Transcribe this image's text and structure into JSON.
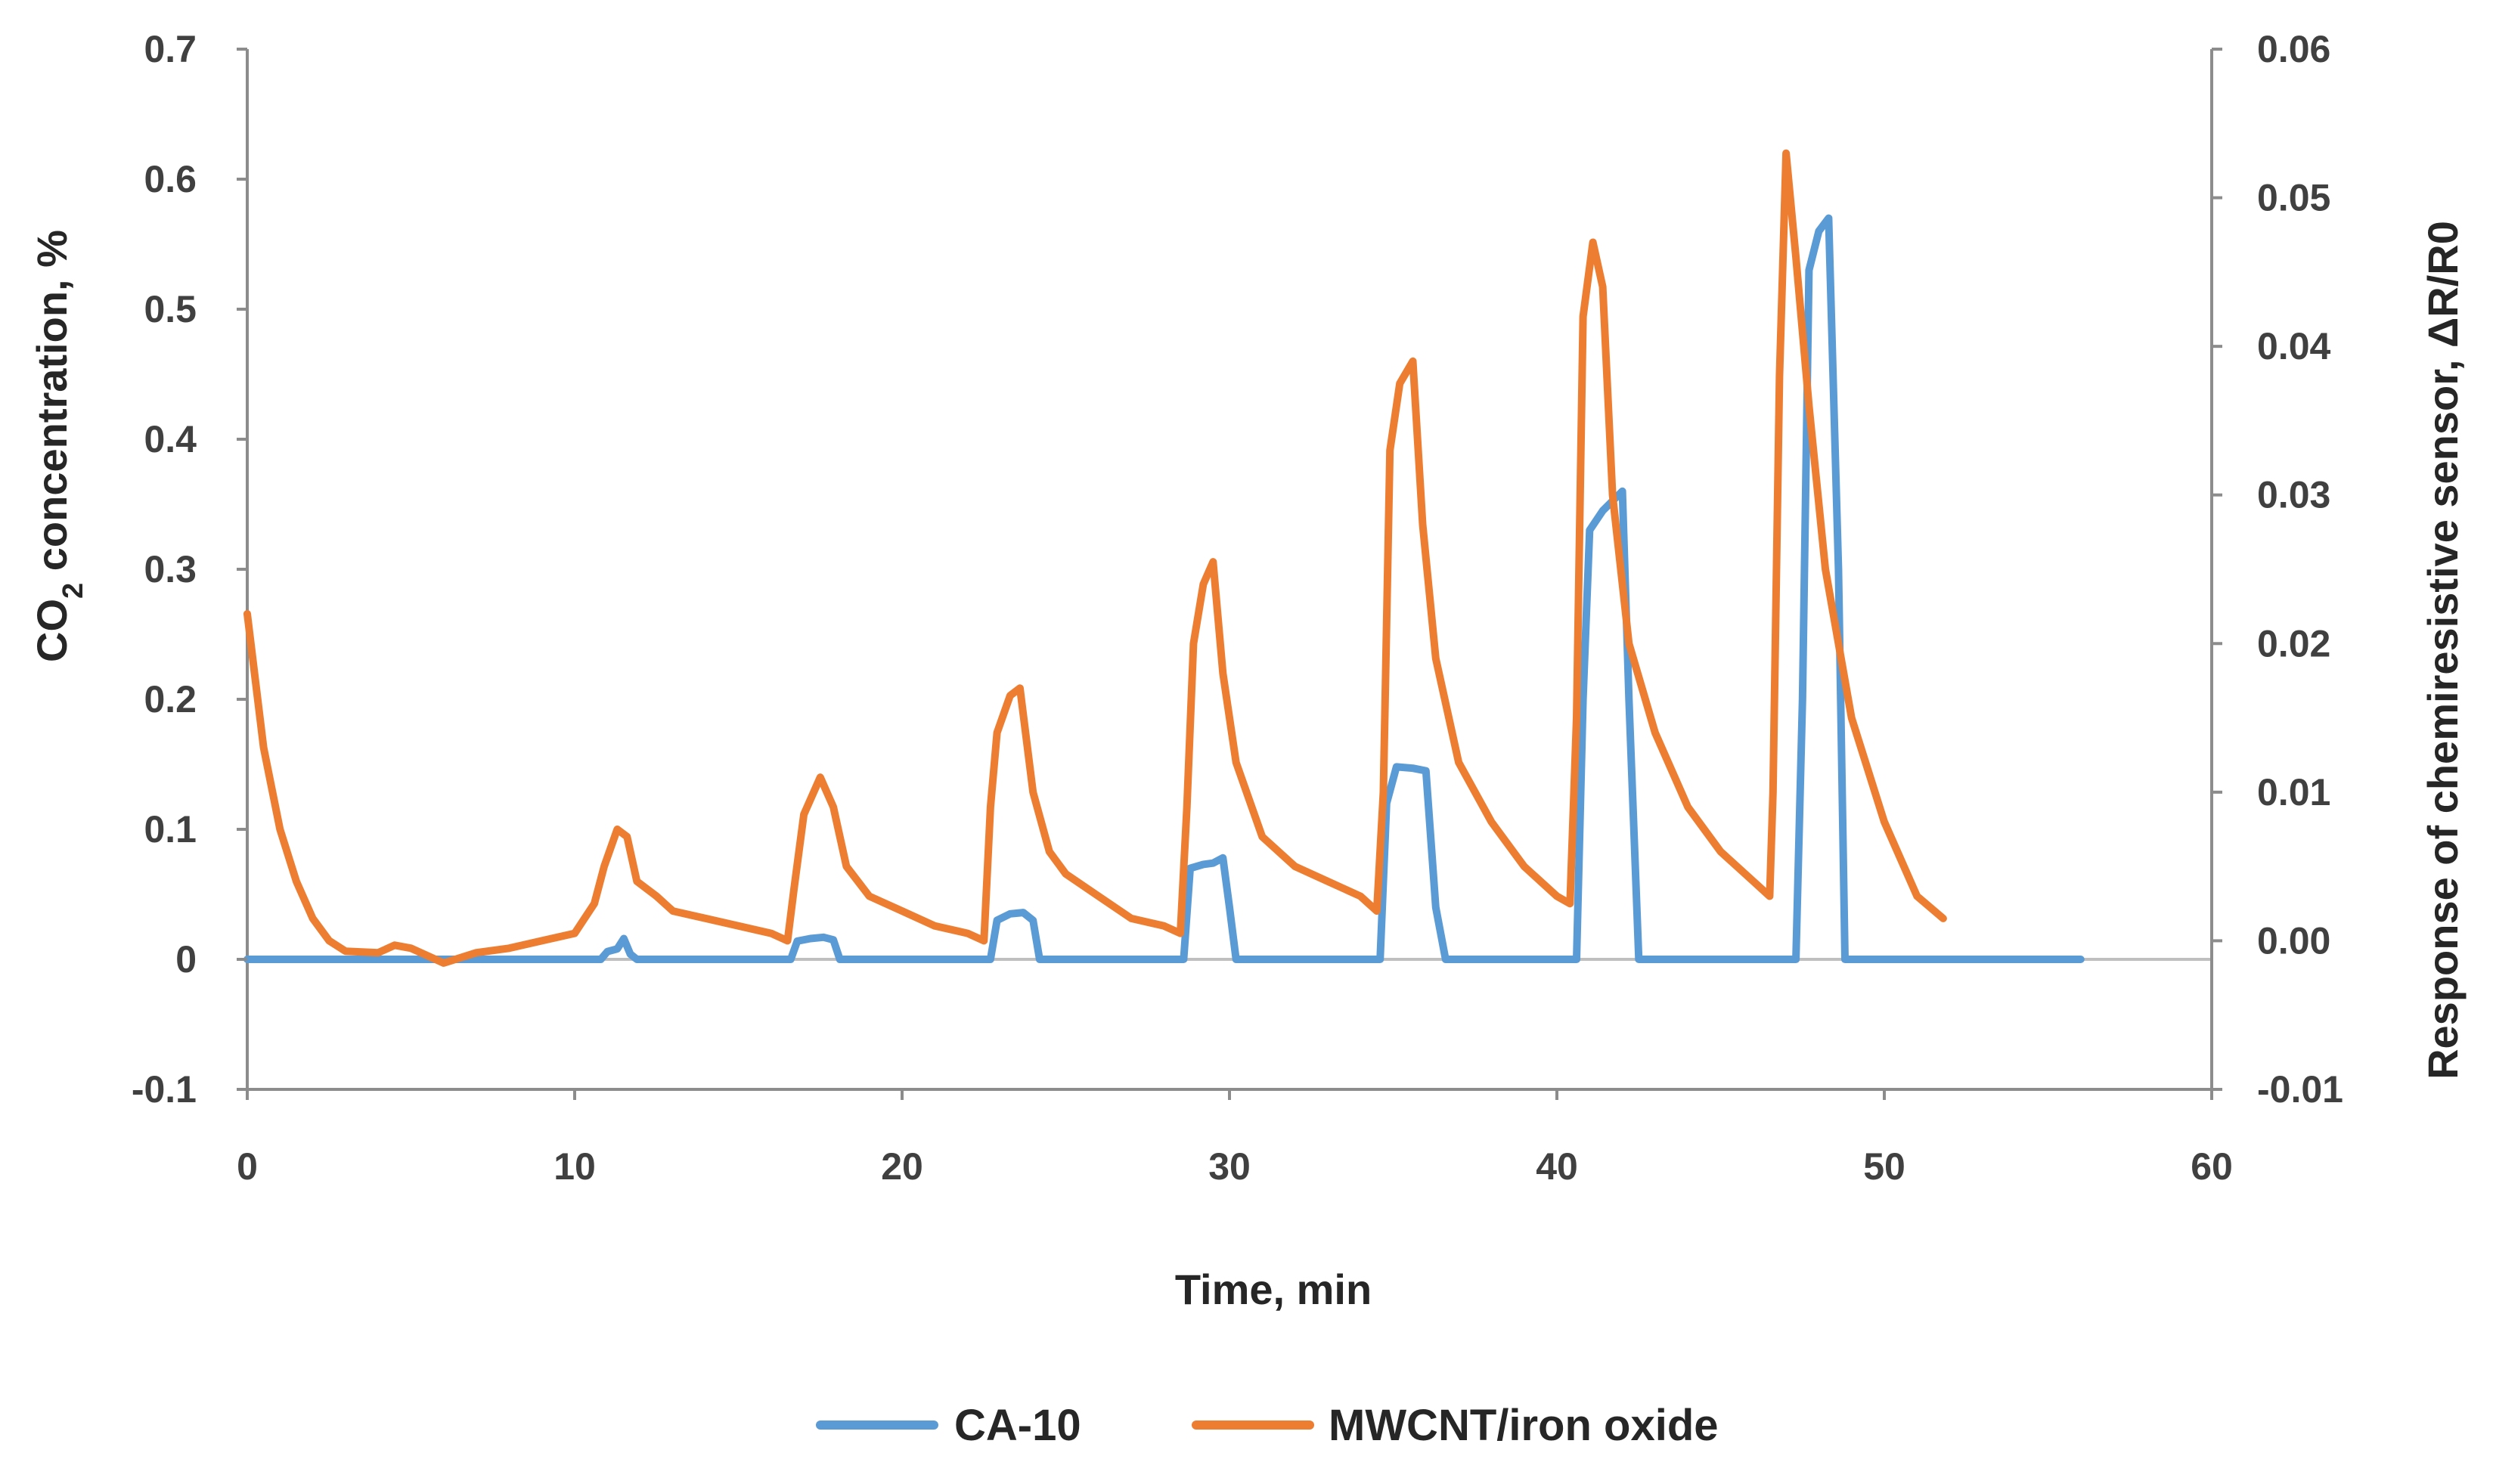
{
  "chart_data": {
    "type": "line",
    "title": "",
    "xlabel": "Time, min",
    "ylabel_left": {
      "text": "CO",
      "sub": "2",
      "rest": " concentration, %"
    },
    "ylabel_right": "Response of chemiresistive sensor, ΔR/R0",
    "xlim": [
      0,
      60
    ],
    "ylim_left": [
      -0.1,
      0.7
    ],
    "ylim_right": [
      -0.01,
      0.06
    ],
    "xticks": [
      "0",
      "10",
      "20",
      "30",
      "40",
      "50",
      "60"
    ],
    "yticks_left": [
      "-0.1",
      "0",
      "0.1",
      "0.2",
      "0.3",
      "0.4",
      "0.5",
      "0.6",
      "0.7"
    ],
    "yticks_right": [
      "-0.01",
      "0.00",
      "0.01",
      "0.02",
      "0.03",
      "0.04",
      "0.05",
      "0.06"
    ],
    "grid": false,
    "legend_position": "bottom",
    "series": [
      {
        "name": "CA-10",
        "axis": "left",
        "color": "#5b9bd5",
        "points": [
          [
            0,
            0
          ],
          [
            10.8,
            0
          ],
          [
            11.0,
            0.006
          ],
          [
            11.3,
            0.008
          ],
          [
            11.5,
            0.016
          ],
          [
            11.7,
            0.004
          ],
          [
            11.9,
            0
          ],
          [
            16.6,
            0
          ],
          [
            16.8,
            0.014
          ],
          [
            17.2,
            0.016
          ],
          [
            17.6,
            0.017
          ],
          [
            17.9,
            0.015
          ],
          [
            18.1,
            0
          ],
          [
            22.7,
            0
          ],
          [
            22.9,
            0.03
          ],
          [
            23.3,
            0.035
          ],
          [
            23.7,
            0.036
          ],
          [
            24.0,
            0.03
          ],
          [
            24.2,
            0
          ],
          [
            28.6,
            0
          ],
          [
            28.8,
            0.07
          ],
          [
            29.2,
            0.073
          ],
          [
            29.5,
            0.074
          ],
          [
            29.8,
            0.078
          ],
          [
            30.0,
            0.04
          ],
          [
            30.2,
            0
          ],
          [
            34.6,
            0
          ],
          [
            34.8,
            0.12
          ],
          [
            35.1,
            0.148
          ],
          [
            35.6,
            0.147
          ],
          [
            36.0,
            0.145
          ],
          [
            36.3,
            0.04
          ],
          [
            36.6,
            0
          ],
          [
            40.6,
            0
          ],
          [
            40.8,
            0.2
          ],
          [
            41.0,
            0.33
          ],
          [
            41.4,
            0.345
          ],
          [
            41.8,
            0.355
          ],
          [
            42.0,
            0.36
          ],
          [
            42.2,
            0.2
          ],
          [
            42.5,
            0
          ],
          [
            47.3,
            0
          ],
          [
            47.5,
            0.2
          ],
          [
            47.7,
            0.53
          ],
          [
            48.0,
            0.56
          ],
          [
            48.3,
            0.57
          ],
          [
            48.6,
            0.3
          ],
          [
            48.8,
            0
          ],
          [
            56,
            0
          ]
        ]
      },
      {
        "name": "MWCNT/iron oxide",
        "axis": "right",
        "color": "#ed7d31",
        "points": [
          [
            0,
            0.022
          ],
          [
            0.5,
            0.013
          ],
          [
            1.0,
            0.0075
          ],
          [
            1.5,
            0.004
          ],
          [
            2.0,
            0.0015
          ],
          [
            2.5,
            0
          ],
          [
            3.0,
            -0.0007
          ],
          [
            4.0,
            -0.0008
          ],
          [
            4.5,
            -0.0003
          ],
          [
            5.0,
            -0.0005
          ],
          [
            6.0,
            -0.0015
          ],
          [
            7.0,
            -0.0008
          ],
          [
            8.0,
            -0.0005
          ],
          [
            9.0,
            0
          ],
          [
            10.0,
            0.0005
          ],
          [
            10.6,
            0.0025
          ],
          [
            10.9,
            0.005
          ],
          [
            11.3,
            0.0075
          ],
          [
            11.6,
            0.007
          ],
          [
            11.9,
            0.004
          ],
          [
            12.5,
            0.003
          ],
          [
            13.0,
            0.002
          ],
          [
            14.0,
            0.0015
          ],
          [
            15.0,
            0.001
          ],
          [
            16.0,
            0.0005
          ],
          [
            16.5,
            0
          ],
          [
            16.7,
            0.0035
          ],
          [
            17.0,
            0.0085
          ],
          [
            17.5,
            0.011
          ],
          [
            17.9,
            0.009
          ],
          [
            18.3,
            0.005
          ],
          [
            19.0,
            0.003
          ],
          [
            20.0,
            0.002
          ],
          [
            21.0,
            0.001
          ],
          [
            22.0,
            0.0005
          ],
          [
            22.5,
            0
          ],
          [
            22.7,
            0.009
          ],
          [
            22.9,
            0.014
          ],
          [
            23.3,
            0.0165
          ],
          [
            23.6,
            0.017
          ],
          [
            24.0,
            0.01
          ],
          [
            24.5,
            0.006
          ],
          [
            25.0,
            0.0045
          ],
          [
            26.0,
            0.003
          ],
          [
            27.0,
            0.0015
          ],
          [
            28.0,
            0.001
          ],
          [
            28.5,
            0.0005
          ],
          [
            28.7,
            0.009
          ],
          [
            28.9,
            0.02
          ],
          [
            29.2,
            0.024
          ],
          [
            29.5,
            0.0255
          ],
          [
            29.8,
            0.018
          ],
          [
            30.2,
            0.012
          ],
          [
            31.0,
            0.007
          ],
          [
            32.0,
            0.005
          ],
          [
            33.0,
            0.004
          ],
          [
            34.0,
            0.003
          ],
          [
            34.5,
            0.002
          ],
          [
            34.7,
            0.01
          ],
          [
            34.9,
            0.033
          ],
          [
            35.2,
            0.0375
          ],
          [
            35.6,
            0.039
          ],
          [
            35.9,
            0.028
          ],
          [
            36.3,
            0.019
          ],
          [
            37.0,
            0.012
          ],
          [
            38.0,
            0.008
          ],
          [
            39.0,
            0.005
          ],
          [
            40.0,
            0.003
          ],
          [
            40.4,
            0.0025
          ],
          [
            40.6,
            0.015
          ],
          [
            40.8,
            0.042
          ],
          [
            41.1,
            0.047
          ],
          [
            41.4,
            0.044
          ],
          [
            41.7,
            0.03
          ],
          [
            42.2,
            0.02
          ],
          [
            43.0,
            0.014
          ],
          [
            44.0,
            0.009
          ],
          [
            45.0,
            0.006
          ],
          [
            46.0,
            0.004
          ],
          [
            46.5,
            0.003
          ],
          [
            46.6,
            0.01
          ],
          [
            46.8,
            0.038
          ],
          [
            47.0,
            0.053
          ],
          [
            47.3,
            0.046
          ],
          [
            47.7,
            0.036
          ],
          [
            48.2,
            0.025
          ],
          [
            49.0,
            0.015
          ],
          [
            50.0,
            0.008
          ],
          [
            51.0,
            0.003
          ],
          [
            51.8,
            0.0015
          ]
        ]
      }
    ]
  }
}
